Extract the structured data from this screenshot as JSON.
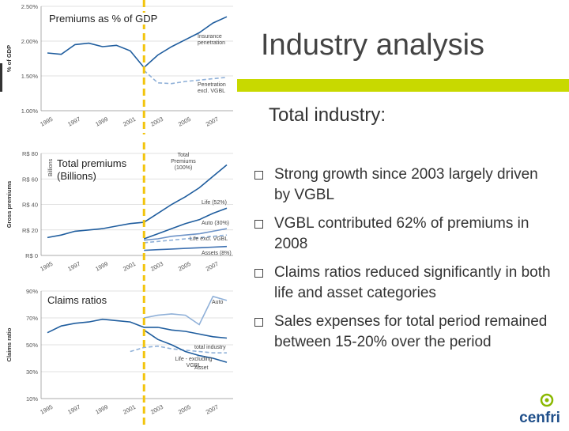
{
  "slide": {
    "title": "Industry analysis",
    "subtitle": "Total industry:",
    "bullets": [
      "Strong growth since 2003 largely driven by VGBL",
      "VGBL contributed 62% of premiums in 2008",
      "Claims ratios reduced significantly in both life and asset categories",
      "Sales expenses for total period remained between 15-20% over the period"
    ],
    "logo_text": "cenfri",
    "accent_color": "#c8d900"
  },
  "chart_data": [
    {
      "type": "line",
      "title": "Premiums as % of GDP",
      "ylabel": "% of GDP",
      "ylim": [
        1.0,
        2.5
      ],
      "yticks": [
        "1.00%",
        "1.50%",
        "2.00%",
        "2.50%"
      ],
      "xticks": [
        "1995",
        "1997",
        "1999",
        "2001",
        "2003",
        "2005",
        "2007"
      ],
      "x": [
        1995,
        1996,
        1997,
        1998,
        1999,
        2000,
        2001,
        2002,
        2003,
        2004,
        2005,
        2006,
        2007,
        2008
      ],
      "series": [
        {
          "name": "Insurance penetration",
          "color": "#1f5d9e",
          "values": [
            1.83,
            1.81,
            1.95,
            1.97,
            1.92,
            1.94,
            1.86,
            1.62,
            1.8,
            1.92,
            2.02,
            2.12,
            2.26,
            2.35
          ]
        },
        {
          "name": "Penetration excl. VGBL",
          "color": "#8fb0d8",
          "dashed": true,
          "values": [
            null,
            null,
            null,
            null,
            null,
            null,
            null,
            1.58,
            1.4,
            1.39,
            1.42,
            1.44,
            1.46,
            1.48
          ]
        }
      ],
      "marker_x": 2002,
      "grid": true
    },
    {
      "type": "line",
      "title": "Total premiums (Billions)",
      "ylabel": "Gross premiums",
      "yunit": "Billions",
      "ylim": [
        0,
        80
      ],
      "yticks": [
        "R$ 0",
        "R$ 20",
        "R$ 40",
        "R$ 60",
        "R$ 80"
      ],
      "xticks": [
        "1995",
        "1997",
        "1999",
        "2001",
        "2003",
        "2005",
        "2007"
      ],
      "x": [
        1995,
        1996,
        1997,
        1998,
        1999,
        2000,
        2001,
        2002,
        2003,
        2004,
        2005,
        2006,
        2007,
        2008
      ],
      "series": [
        {
          "name": "Total Premiums (100%)",
          "color": "#1f5d9e",
          "values": [
            14,
            16,
            19,
            20,
            21,
            23,
            25,
            26,
            33,
            40,
            46,
            53,
            62,
            71
          ]
        },
        {
          "name": "Life (52%)",
          "color": "#1f5d9e",
          "values": [
            null,
            null,
            null,
            null,
            null,
            null,
            null,
            13,
            17,
            21,
            25,
            28,
            33,
            37
          ]
        },
        {
          "name": "Auto (30%)",
          "color": "#6d93c8",
          "values": [
            null,
            null,
            null,
            null,
            null,
            null,
            null,
            12,
            13,
            15,
            16,
            17,
            19,
            21
          ]
        },
        {
          "name": "Life excl. VGBL",
          "color": "#8fb0d8",
          "dashed": true,
          "values": [
            null,
            null,
            null,
            null,
            null,
            null,
            null,
            10,
            11,
            12,
            13,
            14,
            15,
            16
          ]
        },
        {
          "name": "Assets (8%)",
          "color": "#3b6fb0",
          "values": [
            null,
            null,
            null,
            null,
            null,
            null,
            null,
            4,
            4.5,
            5,
            5.5,
            6,
            6.5,
            7
          ]
        }
      ],
      "marker_x": 2002,
      "grid": true
    },
    {
      "type": "line",
      "title": "Claims ratios",
      "ylabel": "Claims ratio",
      "ylim": [
        10,
        90
      ],
      "yticks": [
        "10%",
        "30%",
        "50%",
        "70%",
        "90%"
      ],
      "xticks": [
        "1995",
        "1997",
        "1999",
        "2001",
        "2003",
        "2005",
        "2007"
      ],
      "x": [
        1995,
        1996,
        1997,
        1998,
        1999,
        2000,
        2001,
        2002,
        2003,
        2004,
        2005,
        2006,
        2007,
        2008
      ],
      "series": [
        {
          "name": "Auto",
          "color": "#8fb0d8",
          "values": [
            null,
            null,
            null,
            null,
            null,
            null,
            null,
            70,
            72,
            73,
            72,
            65,
            86,
            83
          ]
        },
        {
          "name": "total industry",
          "color": "#1f5d9e",
          "values": [
            59,
            64,
            66,
            67,
            69,
            68,
            67,
            63,
            63,
            61,
            60,
            58,
            56,
            55
          ]
        },
        {
          "name": "Life - excluding VGBL",
          "color": "#8fb0d8",
          "dashed": true,
          "values": [
            null,
            null,
            null,
            null,
            null,
            null,
            45,
            48,
            49,
            47,
            46,
            45,
            44,
            44
          ]
        },
        {
          "name": "Asset",
          "color": "#1f5d9e",
          "values": [
            null,
            null,
            null,
            null,
            null,
            null,
            null,
            61,
            54,
            50,
            45,
            42,
            40,
            37
          ]
        }
      ],
      "marker_x": 2002,
      "grid": true
    }
  ]
}
